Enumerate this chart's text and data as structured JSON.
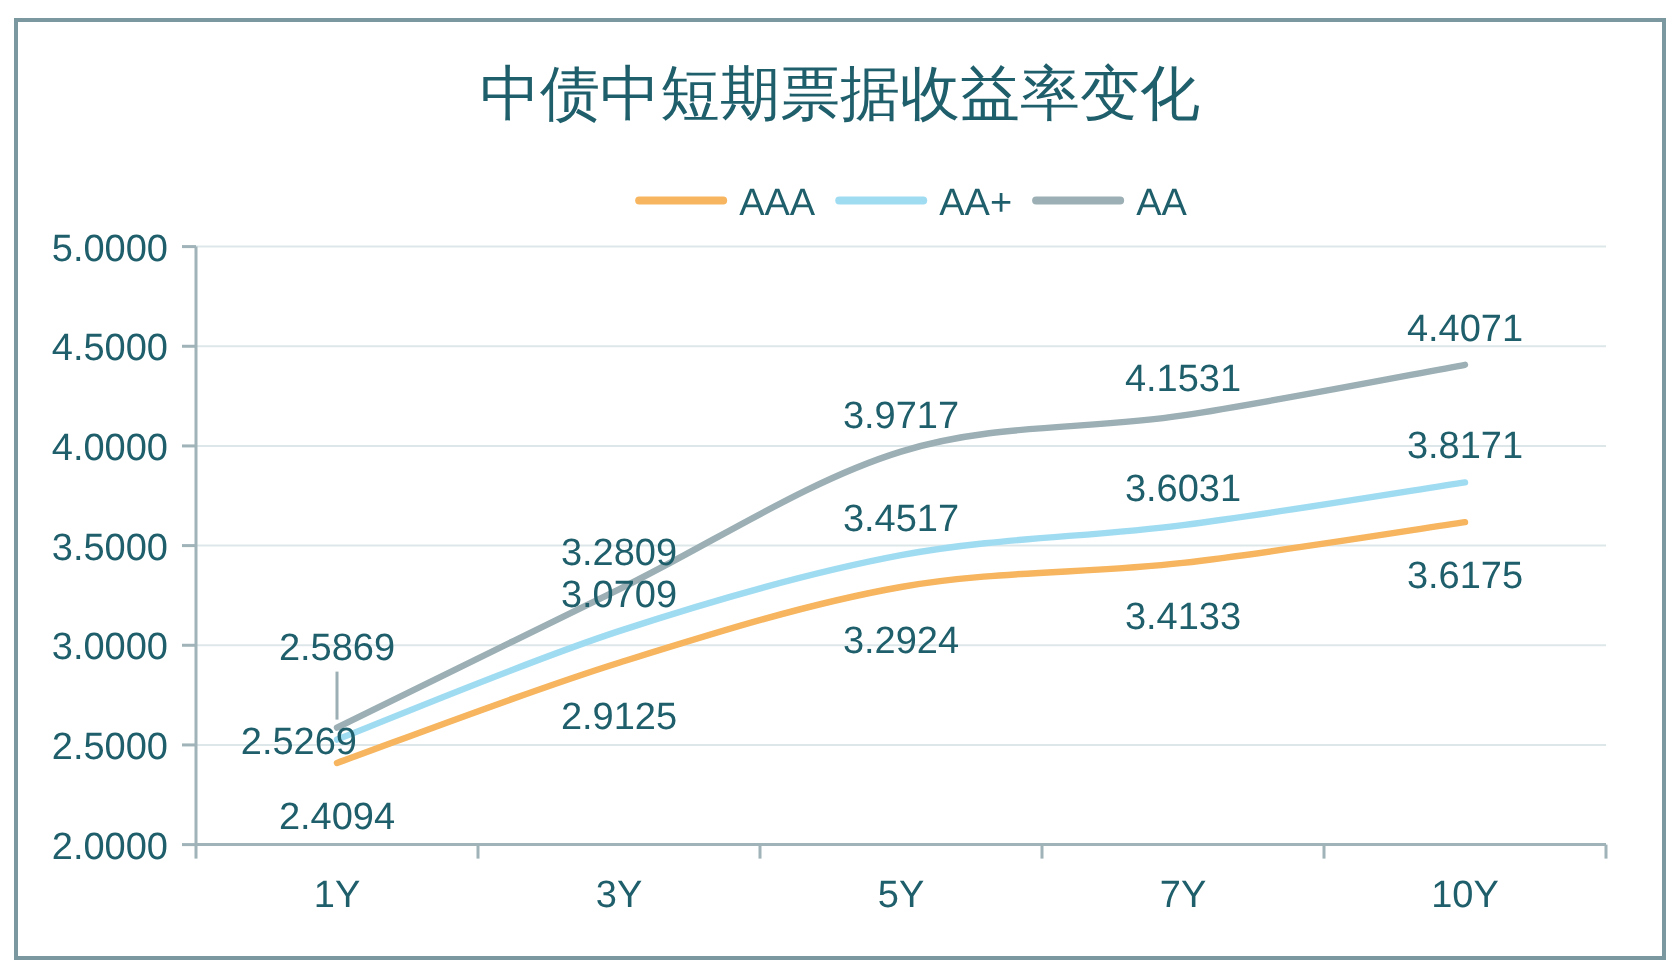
{
  "chart_data": {
    "type": "line",
    "title": "中债中短期票据收益率变化",
    "categories": [
      "1Y",
      "3Y",
      "5Y",
      "7Y",
      "10Y"
    ],
    "series": [
      {
        "name": "AAA",
        "color": "#f6b55e",
        "values": [
          2.4094,
          2.9125,
          3.2924,
          3.4133,
          3.6175
        ]
      },
      {
        "name": "AA+",
        "color": "#9fdcf2",
        "values": [
          2.5269,
          3.0709,
          3.4517,
          3.6031,
          3.8171
        ]
      },
      {
        "name": "AA",
        "color": "#9bafb5",
        "values": [
          2.5869,
          3.2809,
          3.9717,
          4.1531,
          4.4071
        ]
      }
    ],
    "ylim": [
      2,
      5
    ],
    "yticks": [
      {
        "value": 2,
        "label": "2.0000"
      },
      {
        "value": 2.5,
        "label": "2.5000"
      },
      {
        "value": 3,
        "label": "3.0000"
      },
      {
        "value": 3.5,
        "label": "3.5000"
      },
      {
        "value": 4,
        "label": "4.0000"
      },
      {
        "value": 4.5,
        "label": "4.5000"
      },
      {
        "value": 5,
        "label": "5.0000"
      }
    ],
    "grid": "y",
    "legend": "top",
    "data_labels": true,
    "line_style": "solid"
  }
}
